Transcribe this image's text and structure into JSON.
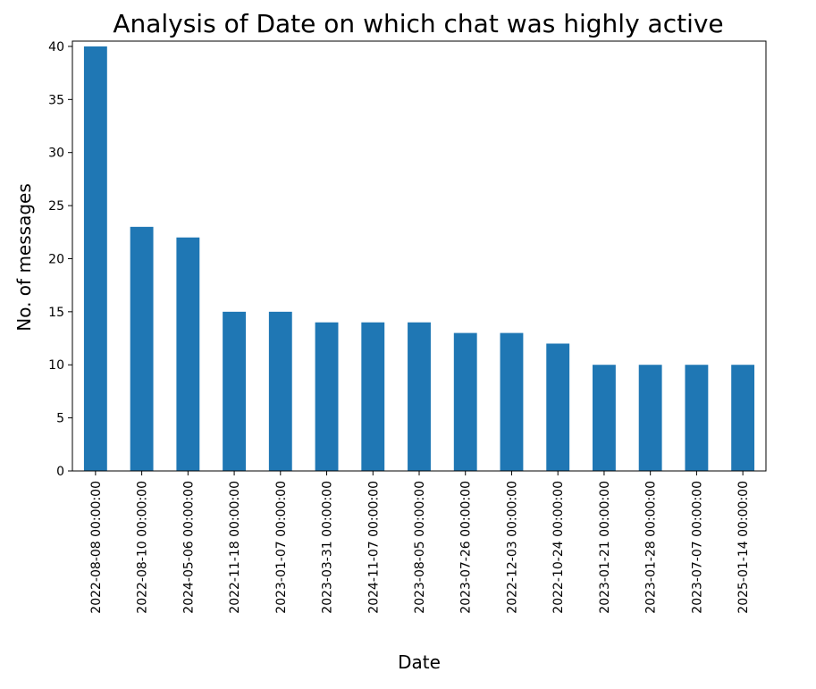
{
  "chart_data": {
    "type": "bar",
    "title": "Analysis of Date on which chat was highly active",
    "xlabel": "Date",
    "ylabel": "No. of messages",
    "categories": [
      "2022-08-08 00:00:00",
      "2022-08-10 00:00:00",
      "2024-05-06 00:00:00",
      "2022-11-18 00:00:00",
      "2023-01-07 00:00:00",
      "2023-03-31 00:00:00",
      "2024-11-07 00:00:00",
      "2023-08-05 00:00:00",
      "2023-07-26 00:00:00",
      "2022-12-03 00:00:00",
      "2022-10-24 00:00:00",
      "2023-01-21 00:00:00",
      "2023-01-28 00:00:00",
      "2023-07-07 00:00:00",
      "2025-01-14 00:00:00"
    ],
    "values": [
      40,
      23,
      22,
      15,
      15,
      14,
      14,
      14,
      13,
      13,
      12,
      10,
      10,
      10,
      10
    ],
    "ylim": [
      0,
      40.5
    ],
    "yticks": [
      0,
      5,
      10,
      15,
      20,
      25,
      30,
      35,
      40
    ],
    "bar_color": "#1f77b4",
    "grid": false,
    "legend": "none",
    "xtick_rotation": "vertical"
  }
}
